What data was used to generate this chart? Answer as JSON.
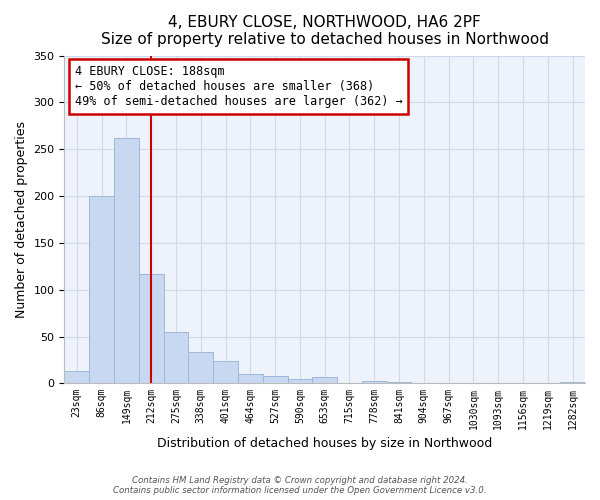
{
  "title": "4, EBURY CLOSE, NORTHWOOD, HA6 2PF",
  "subtitle": "Size of property relative to detached houses in Northwood",
  "xlabel": "Distribution of detached houses by size in Northwood",
  "ylabel": "Number of detached properties",
  "bar_labels": [
    "23sqm",
    "86sqm",
    "149sqm",
    "212sqm",
    "275sqm",
    "338sqm",
    "401sqm",
    "464sqm",
    "527sqm",
    "590sqm",
    "653sqm",
    "715sqm",
    "778sqm",
    "841sqm",
    "904sqm",
    "967sqm",
    "1030sqm",
    "1093sqm",
    "1156sqm",
    "1219sqm",
    "1282sqm"
  ],
  "bar_values": [
    13,
    200,
    262,
    117,
    55,
    33,
    24,
    10,
    8,
    5,
    7,
    0,
    3,
    1,
    0,
    0,
    0,
    0,
    0,
    0,
    1
  ],
  "bar_color": "#c8d8f0",
  "bar_edge_color": "#a0b8d8",
  "vline_color": "#cc0000",
  "ylim": [
    0,
    350
  ],
  "annotation_title": "4 EBURY CLOSE: 188sqm",
  "annotation_line1": "← 50% of detached houses are smaller (368)",
  "annotation_line2": "49% of semi-detached houses are larger (362) →",
  "annotation_box_color": "#ffffff",
  "annotation_border_color": "#cc0000",
  "footer1": "Contains HM Land Registry data © Crown copyright and database right 2024.",
  "footer2": "Contains public sector information licensed under the Open Government Licence v3.0.",
  "title_fontsize": 11,
  "xlabel_fontsize": 9,
  "ylabel_fontsize": 9,
  "grid_color": "#d0d8ec",
  "bg_color": "#eef2fa"
}
